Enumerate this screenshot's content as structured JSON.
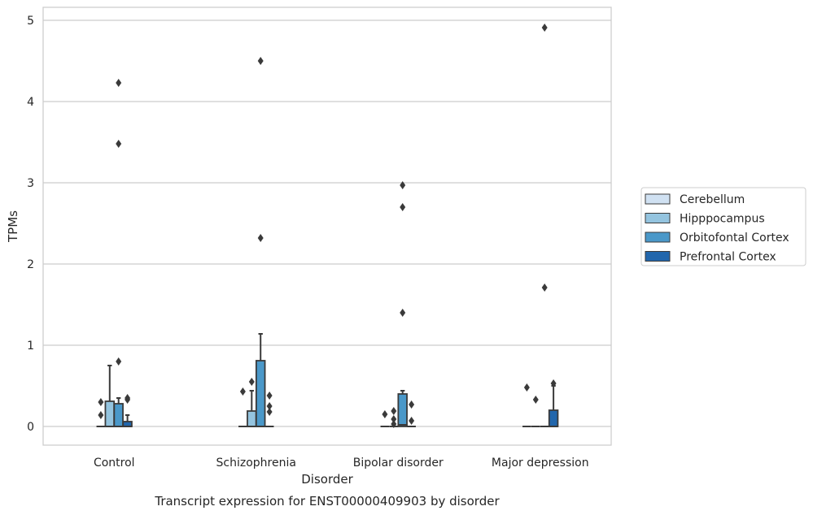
{
  "chart_data": {
    "type": "box",
    "caption": "Transcript expression for ENST00000409903 by disorder",
    "xlabel": "Disorder",
    "ylabel": "TPMs",
    "ylim": [
      -0.23,
      5.16
    ],
    "yticks": [
      0,
      1,
      2,
      3,
      4,
      5
    ],
    "grid": "horizontal",
    "legend": "right",
    "categories": [
      "Control",
      "Schizophrenia",
      "Bipolar disorder",
      "Major depression"
    ],
    "series": [
      {
        "name": "Cerebellum",
        "color": "#d0e1f2",
        "boxes": [
          {
            "q1": 0,
            "median": 0,
            "q3": 0,
            "whislo": 0,
            "whishi": 0,
            "fliers": [
              0.14,
              0.3
            ]
          },
          {
            "q1": 0,
            "median": 0,
            "q3": 0,
            "whislo": 0,
            "whishi": 0,
            "fliers": [
              0.43
            ]
          },
          {
            "q1": 0,
            "median": 0,
            "q3": 0,
            "whislo": 0,
            "whishi": 0,
            "fliers": [
              0.15
            ]
          },
          {
            "q1": 0,
            "median": 0,
            "q3": 0,
            "whislo": 0,
            "whishi": 0,
            "fliers": [
              0.48
            ]
          }
        ]
      },
      {
        "name": "Hipppocampus",
        "color": "#94c4df",
        "boxes": [
          {
            "q1": 0,
            "median": 0,
            "q3": 0.31,
            "whislo": 0,
            "whishi": 0.75,
            "fliers": []
          },
          {
            "q1": 0,
            "median": 0,
            "q3": 0.19,
            "whislo": 0,
            "whishi": 0.44,
            "fliers": [
              0.55
            ]
          },
          {
            "q1": 0,
            "median": 0,
            "q3": 0,
            "whislo": 0,
            "whishi": 0,
            "fliers": [
              0.03,
              0.09,
              0.19
            ]
          },
          {
            "q1": 0,
            "median": 0,
            "q3": 0,
            "whislo": 0,
            "whishi": 0,
            "fliers": [
              0.33
            ]
          }
        ]
      },
      {
        "name": "Orbitofontal Cortex",
        "color": "#4a98c9",
        "boxes": [
          {
            "q1": 0,
            "median": 0,
            "q3": 0.28,
            "whislo": 0,
            "whishi": 0.35,
            "fliers": [
              0.8,
              3.48,
              4.23
            ]
          },
          {
            "q1": 0,
            "median": 0,
            "q3": 0.81,
            "whislo": 0,
            "whishi": 1.14,
            "fliers": [
              2.32,
              4.5
            ]
          },
          {
            "q1": 0,
            "median": 0.02,
            "q3": 0.4,
            "whislo": 0,
            "whishi": 0.44,
            "fliers": [
              1.4,
              2.7,
              2.97
            ]
          },
          {
            "q1": 0,
            "median": 0,
            "q3": 0,
            "whislo": 0,
            "whishi": 0,
            "fliers": [
              1.71,
              4.91
            ]
          }
        ]
      },
      {
        "name": "Prefrontal Cortex",
        "color": "#2166ac",
        "boxes": [
          {
            "q1": 0,
            "median": 0,
            "q3": 0.06,
            "whislo": 0,
            "whishi": 0.14,
            "fliers": [
              0.33,
              0.35
            ]
          },
          {
            "q1": 0,
            "median": 0,
            "q3": 0,
            "whislo": 0,
            "whishi": 0,
            "fliers": [
              0.18,
              0.25,
              0.38
            ]
          },
          {
            "q1": 0,
            "median": 0,
            "q3": 0,
            "whislo": 0,
            "whishi": 0,
            "fliers": [
              0.07,
              0.27
            ]
          },
          {
            "q1": 0,
            "median": 0,
            "q3": 0.2,
            "whislo": 0,
            "whishi": 0.5,
            "fliers": [
              0.53
            ]
          }
        ]
      }
    ]
  }
}
